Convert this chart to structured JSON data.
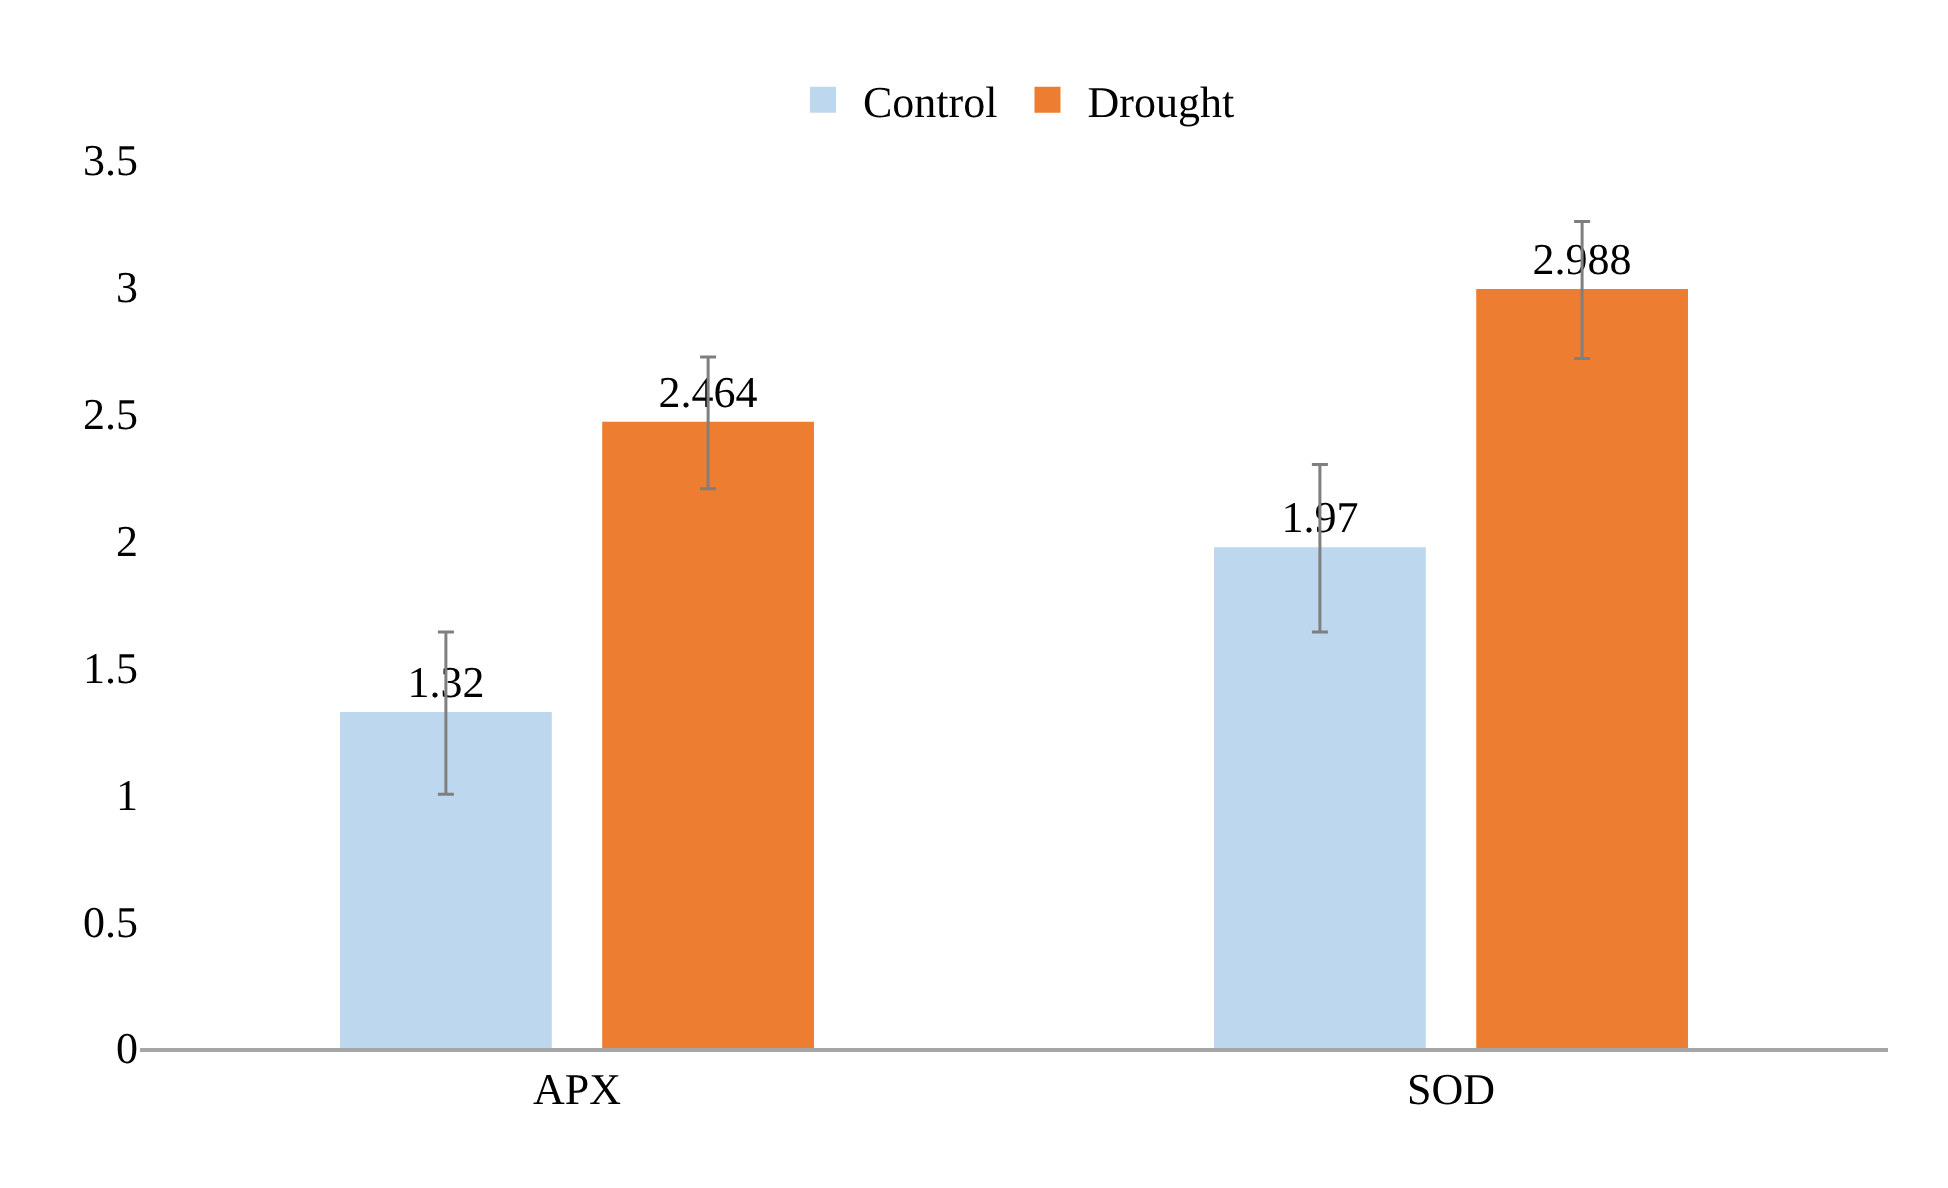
{
  "chart_data": {
    "type": "bar",
    "categories": [
      "APX",
      "SOD"
    ],
    "series": [
      {
        "name": "Control",
        "color": "#bdd7ee",
        "values": [
          1.32,
          1.97
        ],
        "errors": [
          0.32,
          0.33
        ]
      },
      {
        "name": "Drought",
        "color": "#ed7d31",
        "values": [
          2.464,
          2.988
        ],
        "errors": [
          0.26,
          0.27
        ]
      }
    ],
    "ylim": [
      0,
      3.5
    ],
    "yticks": [
      0,
      0.5,
      1,
      1.5,
      2,
      2.5,
      3,
      3.5
    ],
    "legend": "top",
    "data_labels": true
  }
}
